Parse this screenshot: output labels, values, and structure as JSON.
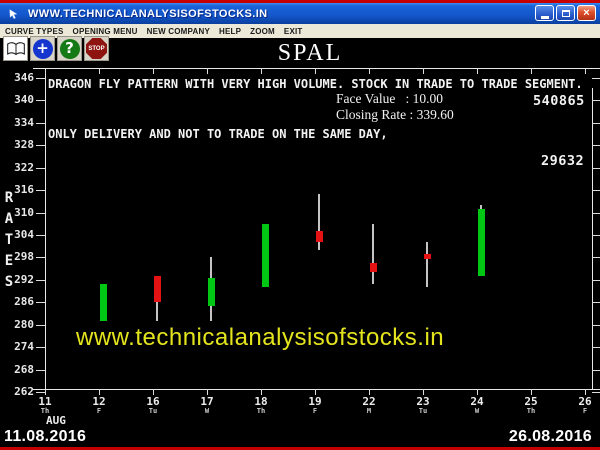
{
  "window": {
    "title": "WWW.TECHNICALANALYSISOFSTOCKS.IN",
    "buttons": {
      "minimize": "minimize",
      "restore": "restore",
      "close": "close"
    }
  },
  "menu": {
    "items": [
      "CURVE TYPES",
      "OPENING MENU",
      "NEW COMPANY",
      "HELP",
      "ZOOM",
      "EXIT"
    ]
  },
  "toolbar": {
    "book_icon": "open-book",
    "add_label": "+",
    "help_label": "?",
    "stop_label": "STOP"
  },
  "header": {
    "symbol": "SPAL"
  },
  "annotations": {
    "line1": "DRAGON FLY PATTERN WITH VERY HIGH VOLUME. STOCK IN TRADE TO TRADE SEGMENT.",
    "line2": "ONLY DELIVERY AND NOT TO TRADE ON THE SAME DAY,",
    "face_value_label": "Face Value",
    "face_value": "10.00",
    "closing_rate_label": "Closing Rate",
    "closing_rate": "339.60",
    "volume_top": "540865",
    "volume_bottom": "29632",
    "watermark": "www.technicalanalysisofstocks.in"
  },
  "footer": {
    "start_date": "11.08.2016",
    "end_date": "26.08.2016"
  },
  "chart_data": {
    "type": "candlestick",
    "title": "SPAL",
    "ylabel": "RATES",
    "month_label": "AUG",
    "y_ticks": [
      346,
      340,
      334,
      328,
      322,
      316,
      310,
      304,
      298,
      292,
      286,
      280,
      274,
      268,
      262
    ],
    "ylim": [
      262,
      346
    ],
    "x_ticks": [
      {
        "day": "11",
        "dow": "Th"
      },
      {
        "day": "12",
        "dow": "F"
      },
      {
        "day": "16",
        "dow": "Tu"
      },
      {
        "day": "17",
        "dow": "W"
      },
      {
        "day": "18",
        "dow": "Th"
      },
      {
        "day": "19",
        "dow": "F"
      },
      {
        "day": "22",
        "dow": "M"
      },
      {
        "day": "23",
        "dow": "Tu"
      },
      {
        "day": "24",
        "dow": "W"
      },
      {
        "day": "25",
        "dow": "Th"
      },
      {
        "day": "26",
        "dow": "F"
      }
    ],
    "candles": [
      {
        "day": "12",
        "xi": 1,
        "open": 281,
        "high": 291,
        "low": 281,
        "close": 291,
        "dir": "up"
      },
      {
        "day": "16",
        "xi": 2,
        "open": 293,
        "high": 293,
        "low": 281,
        "close": 286,
        "dir": "down"
      },
      {
        "day": "17",
        "xi": 3,
        "open": 285,
        "high": 298,
        "low": 281,
        "close": 292.5,
        "dir": "up"
      },
      {
        "day": "18",
        "xi": 4,
        "open": 290,
        "high": 307,
        "low": 290,
        "close": 307,
        "dir": "up"
      },
      {
        "day": "19",
        "xi": 5,
        "open": 305,
        "high": 315,
        "low": 300,
        "close": 302,
        "dir": "down"
      },
      {
        "day": "22",
        "xi": 6,
        "open": 296.5,
        "high": 307,
        "low": 291,
        "close": 294,
        "dir": "down"
      },
      {
        "day": "23",
        "xi": 7,
        "open": 299,
        "high": 302,
        "low": 290,
        "close": 297.5,
        "dir": "down"
      },
      {
        "day": "24",
        "xi": 8,
        "open": 293,
        "high": 312,
        "low": 293,
        "close": 311,
        "dir": "up"
      }
    ],
    "colors": {
      "up": "#00c614",
      "down": "#e41212",
      "wick": "#c4c4c4"
    },
    "legend": "none",
    "grid": false
  }
}
